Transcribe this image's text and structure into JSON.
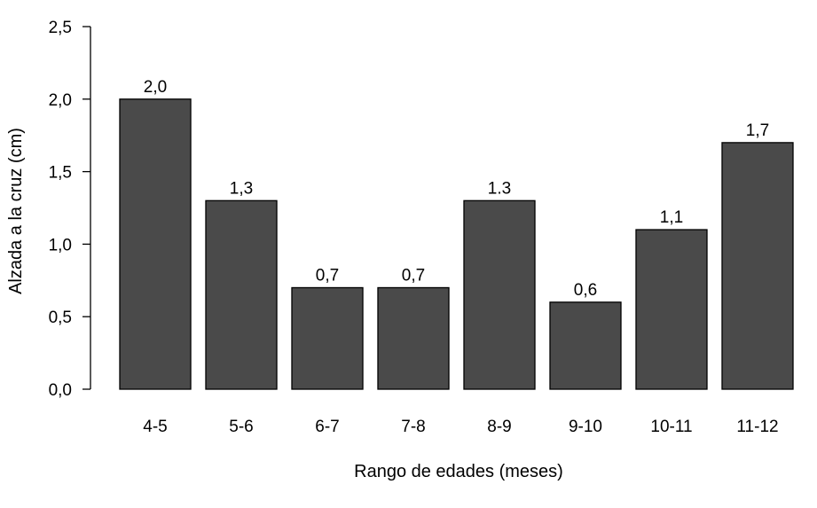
{
  "chart_data": {
    "type": "bar",
    "categories": [
      "4-5",
      "5-6",
      "6-7",
      "7-8",
      "8-9",
      "9-10",
      "10-11",
      "11-12"
    ],
    "values": [
      2.0,
      1.3,
      0.7,
      0.7,
      1.3,
      0.6,
      1.1,
      1.7
    ],
    "data_labels": [
      "2,0",
      "1,3",
      "0,7",
      "0,7",
      "1.3",
      "0,6",
      "1,1",
      "1,7"
    ],
    "xlabel": "Rango de edades (meses)",
    "ylabel": "Alzada a la cruz (cm)",
    "ylim": [
      0,
      2.5
    ],
    "yticks": [
      0,
      0.5,
      1.0,
      1.5,
      2.0,
      2.5
    ],
    "ytick_labels": [
      "0,0",
      "0,5",
      "1,0",
      "1,5",
      "2,0",
      "2,5"
    ],
    "grid": false,
    "bar_color": "#4a4a4a",
    "bar_edge_color": "#000000"
  }
}
